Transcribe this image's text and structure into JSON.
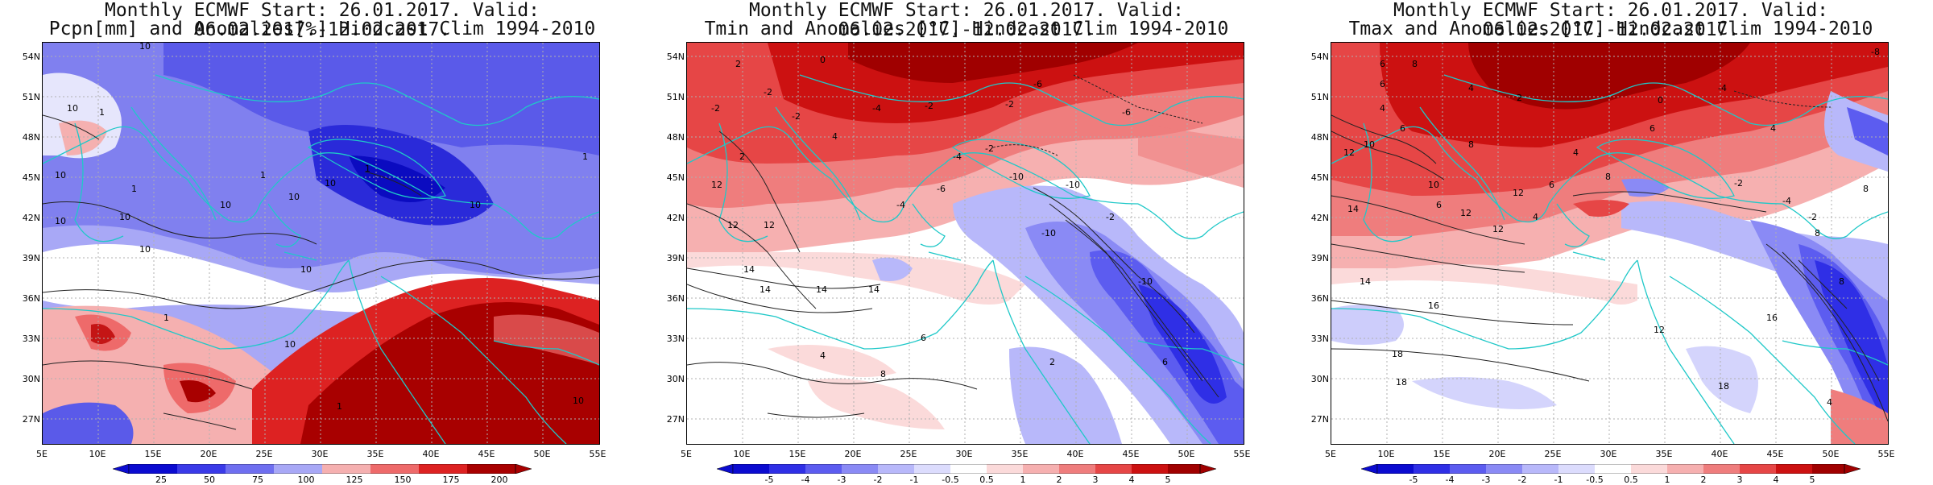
{
  "panels": [
    {
      "title_line1": "Monthly ECMWF Start: 26.01.2017. Valid: 06.02.2017.-12.02.2017.",
      "title_line2": "Pcpn[mm] and Anomalies[%] Hindcast Clim 1994-2010",
      "colorbar_labels": [
        "25",
        "50",
        "75",
        "100",
        "125",
        "150",
        "175",
        "200"
      ],
      "contour_labels": [
        "10",
        "1",
        "10",
        "1",
        "10",
        "10",
        "10",
        "10",
        "10",
        "1",
        "10",
        "10",
        "1",
        "10",
        "1",
        "10",
        "1",
        "10",
        "1",
        "10"
      ]
    },
    {
      "title_line1": "Monthly ECMWF Start: 26.01.2017. Valid: 06.02.2017.-12.02.2017.",
      "title_line2": "Tmin and Anomalies [°C] Hindcast Clim 1994-2010",
      "colorbar_labels": [
        "-5",
        "-4",
        "-3",
        "-2",
        "-1",
        "-0.5",
        "0.5",
        "1",
        "2",
        "3",
        "4",
        "5"
      ],
      "contour_labels": [
        "2",
        "0",
        "-2",
        "-2",
        "-4",
        "-2",
        "-6",
        "2",
        "-2",
        "-2",
        "4",
        "-6",
        "-2",
        "-10",
        "-4",
        "-10",
        "12",
        "12",
        "14",
        "14",
        "14",
        "12",
        "-4",
        "-6",
        "-10",
        "-10",
        "-2",
        "2",
        "6",
        "4",
        "8",
        "14",
        "6"
      ]
    },
    {
      "title_line1": "Monthly ECMWF Start: 26.01.2017. Valid: 06.02.2017.-12.02.2017.",
      "title_line2": "Tmax and Anomalies [°C] Hindcast Clim 1994-2010",
      "colorbar_labels": [
        "-5",
        "-4",
        "-3",
        "-2",
        "-1",
        "-0.5",
        "0.5",
        "1",
        "2",
        "3",
        "4",
        "5"
      ],
      "contour_labels": [
        "6",
        "8",
        "6",
        "4",
        "2",
        "0",
        "-4",
        "4",
        "6",
        "10",
        "12",
        "8",
        "-8",
        "4",
        "6",
        "4",
        "8",
        "14",
        "6",
        "10",
        "12",
        "12",
        "12",
        "-2",
        "-4",
        "8",
        "16",
        "18",
        "18",
        "4",
        "6",
        "-2",
        "8",
        "8",
        "12",
        "16",
        "18",
        "14",
        "4"
      ]
    }
  ],
  "lat_labels": [
    "54N",
    "51N",
    "48N",
    "45N",
    "42N",
    "39N",
    "36N",
    "33N",
    "30N",
    "27N"
  ],
  "lon_labels": [
    "5E",
    "10E",
    "15E",
    "20E",
    "25E",
    "30E",
    "35E",
    "40E",
    "45E",
    "50E",
    "55E"
  ],
  "colors": {
    "pcpn_scale": [
      "#0b0bd0",
      "#3a3ae8",
      "#6f6ff0",
      "#a8a8f6",
      "#ffffff",
      "#f5b0b0",
      "#ee6a6a",
      "#dd2222",
      "#a80000"
    ],
    "temp_scale": [
      "#0b0bd0",
      "#2f2fe6",
      "#5c5cf0",
      "#8a8af5",
      "#b8b8fa",
      "#dcdcfd",
      "#ffffff",
      "#fbdada",
      "#f6b0b0",
      "#ef7d7d",
      "#e64646",
      "#cc1111",
      "#a00000"
    ],
    "coast": "#1fc8c8"
  }
}
